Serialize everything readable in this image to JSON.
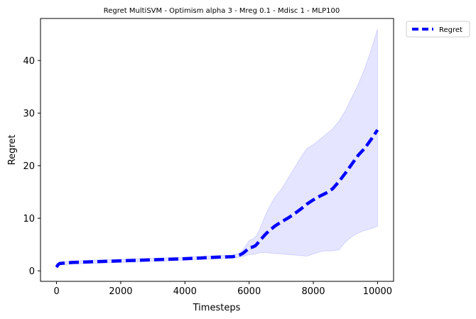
{
  "chart_data": {
    "type": "line",
    "title": "Regret MultiSVM - Optimism alpha 3 - Mreg 0.1 - Mdisc 1 - MLP100",
    "xlabel": "Timesteps",
    "ylabel": "Regret",
    "xlim": [
      -500,
      10500
    ],
    "ylim": [
      -2,
      48
    ],
    "xticks": [
      0,
      2000,
      4000,
      6000,
      8000,
      10000
    ],
    "xtick_labels": [
      "0",
      "2000",
      "4000",
      "6000",
      "8000",
      "10000"
    ],
    "yticks": [
      0,
      10,
      20,
      30,
      40
    ],
    "ytick_labels": [
      "0",
      "10",
      "20",
      "30",
      "40"
    ],
    "grid": false,
    "legend_position": "outside-top-right",
    "series": [
      {
        "name": "Regret",
        "style": "dashed",
        "color": "#0000ff",
        "x": [
          0,
          50,
          100,
          300,
          500,
          1000,
          1500,
          2000,
          2500,
          3000,
          3500,
          4000,
          4500,
          5000,
          5500,
          5700,
          5800,
          5900,
          6000,
          6100,
          6200,
          6300,
          6400,
          6500,
          6600,
          6800,
          7000,
          7200,
          7400,
          7600,
          7800,
          8000,
          8200,
          8400,
          8600,
          8800,
          9000,
          9200,
          9400,
          9600,
          9800,
          10000
        ],
        "y": [
          0.7,
          1.2,
          1.4,
          1.5,
          1.6,
          1.7,
          1.8,
          1.9,
          2.0,
          2.1,
          2.2,
          2.3,
          2.45,
          2.6,
          2.7,
          3.0,
          3.3,
          3.8,
          4.4,
          4.5,
          4.8,
          5.5,
          6.2,
          6.9,
          7.5,
          8.5,
          9.3,
          10.0,
          10.8,
          11.7,
          12.7,
          13.5,
          14.2,
          14.8,
          15.6,
          17.0,
          18.6,
          20.3,
          22.0,
          23.3,
          25.0,
          26.8
        ]
      }
    ],
    "band": {
      "name": "Regret confidence band",
      "color": "#0000ff",
      "opacity": 0.1,
      "x": [
        0,
        50,
        100,
        300,
        500,
        1000,
        1500,
        2000,
        2500,
        3000,
        3500,
        4000,
        4500,
        5000,
        5500,
        5700,
        5800,
        5900,
        6000,
        6100,
        6200,
        6300,
        6400,
        6500,
        6600,
        6800,
        7000,
        7200,
        7400,
        7600,
        7800,
        8000,
        8200,
        8400,
        8600,
        8800,
        9000,
        9200,
        9400,
        9600,
        9800,
        10000
      ],
      "upper": [
        1.0,
        1.5,
        1.7,
        1.8,
        1.9,
        2.0,
        2.1,
        2.2,
        2.3,
        2.4,
        2.5,
        2.6,
        2.75,
        2.9,
        3.0,
        3.4,
        4.0,
        4.8,
        5.8,
        6.0,
        6.5,
        7.5,
        9.0,
        10.5,
        11.8,
        14.0,
        15.5,
        17.5,
        19.5,
        21.5,
        23.3,
        24.0,
        25.0,
        26.0,
        27.0,
        28.5,
        30.5,
        33.0,
        35.5,
        38.5,
        42.0,
        46.0
      ],
      "lower": [
        0.4,
        0.9,
        1.1,
        1.2,
        1.3,
        1.4,
        1.5,
        1.6,
        1.7,
        1.8,
        1.9,
        2.0,
        2.15,
        2.3,
        2.4,
        2.6,
        2.7,
        2.9,
        3.1,
        3.1,
        3.2,
        3.4,
        3.4,
        3.5,
        3.4,
        3.3,
        3.2,
        3.1,
        3.0,
        2.9,
        2.8,
        3.2,
        3.6,
        3.8,
        3.8,
        4.0,
        5.5,
        6.5,
        7.2,
        7.7,
        8.0,
        8.5
      ]
    }
  }
}
